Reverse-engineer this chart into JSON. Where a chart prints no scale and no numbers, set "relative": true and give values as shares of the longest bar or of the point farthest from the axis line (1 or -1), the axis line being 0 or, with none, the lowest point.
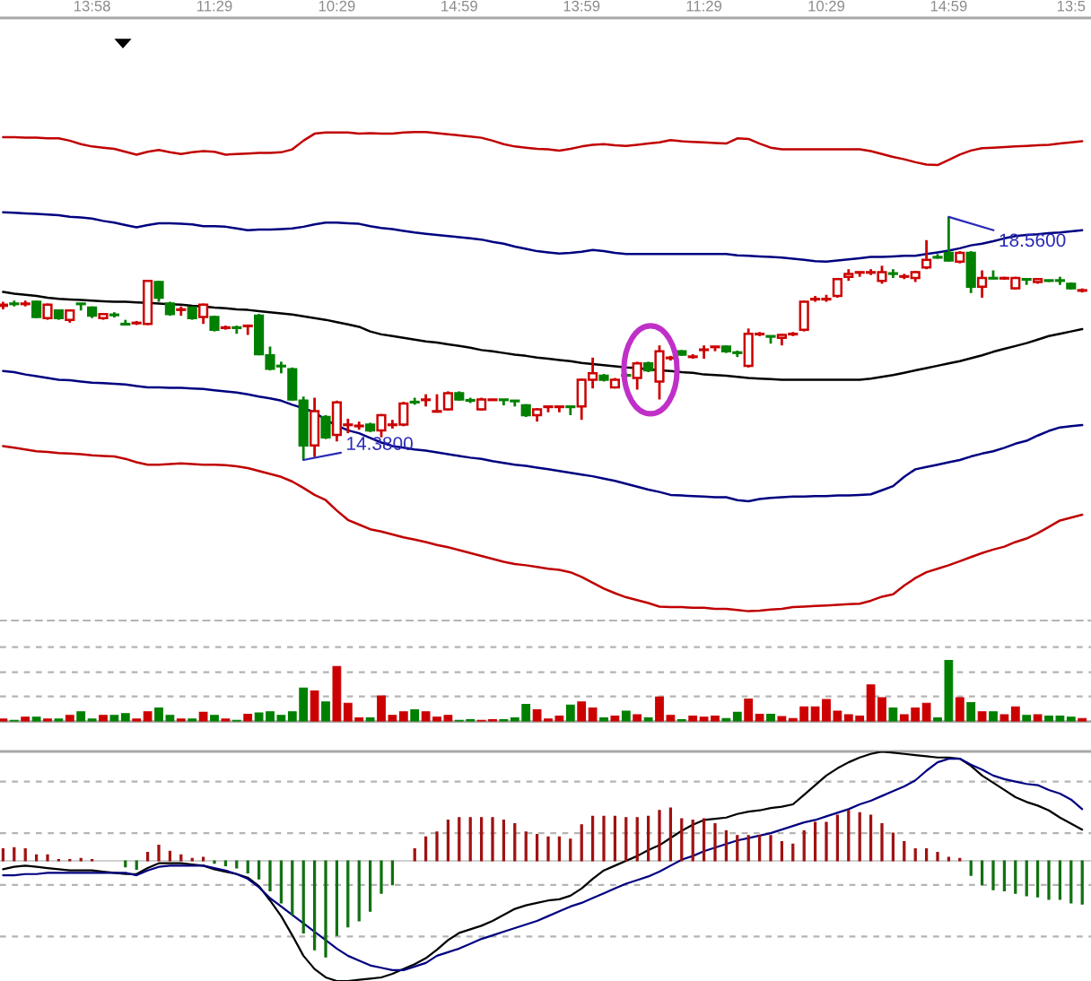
{
  "chart_data": [
    {
      "type": "candlestick",
      "categories": [
        null,
        null,
        null,
        null,
        null,
        null,
        null,
        null,
        "13:58",
        null,
        null,
        null,
        null,
        null,
        null,
        null,
        null,
        null,
        null,
        "11:29",
        null,
        null,
        null,
        null,
        null,
        null,
        null,
        null,
        null,
        null,
        "10:29",
        null,
        null,
        null,
        null,
        null,
        null,
        null,
        null,
        null,
        null,
        "14:59",
        null,
        null,
        null,
        null,
        null,
        null,
        null,
        null,
        null,
        null,
        "13:59",
        null,
        null,
        null,
        null,
        null,
        null,
        null,
        null,
        null,
        null,
        "11:29",
        null,
        null,
        null,
        null,
        null,
        null,
        null,
        null,
        null,
        null,
        "10:29",
        null,
        null,
        null,
        null,
        null,
        null,
        null,
        null,
        null,
        null,
        "14:59",
        null,
        null,
        null,
        null,
        null,
        null,
        null,
        null,
        null,
        null,
        "13:5",
        null
      ],
      "ohlc": [
        [
          17.03,
          17.1,
          16.97,
          17.05
        ],
        [
          17.07,
          17.12,
          17.02,
          17.06
        ],
        [
          17.06,
          17.12,
          17.02,
          17.07
        ],
        [
          17.1,
          17.12,
          16.82,
          16.84
        ],
        [
          16.82,
          17.07,
          16.79,
          17.05
        ],
        [
          16.95,
          16.97,
          16.79,
          16.82
        ],
        [
          16.79,
          16.97,
          16.74,
          16.95
        ],
        [
          17.07,
          17.07,
          16.95,
          17.06
        ],
        [
          17.0,
          17.02,
          16.82,
          16.86
        ],
        [
          16.82,
          16.9,
          16.79,
          16.89
        ],
        [
          16.88,
          16.92,
          16.83,
          16.87
        ],
        [
          16.72,
          16.79,
          16.7,
          16.71
        ],
        [
          16.73,
          16.77,
          16.7,
          16.74
        ],
        [
          16.72,
          17.47,
          16.7,
          17.46
        ],
        [
          17.44,
          17.46,
          17.1,
          17.17
        ],
        [
          17.07,
          17.1,
          16.86,
          16.89
        ],
        [
          16.96,
          17.02,
          16.86,
          16.97
        ],
        [
          17.0,
          17.02,
          16.79,
          16.82
        ],
        [
          16.84,
          17.07,
          16.72,
          17.05
        ],
        [
          16.84,
          16.86,
          16.59,
          16.62
        ],
        [
          16.65,
          16.69,
          16.62,
          16.66
        ],
        [
          16.66,
          16.69,
          16.55,
          16.65
        ],
        [
          16.68,
          16.7,
          16.53,
          16.69
        ],
        [
          16.86,
          16.89,
          16.18,
          16.2
        ],
        [
          16.18,
          16.33,
          15.92,
          15.95
        ],
        [
          16.0,
          16.07,
          15.87,
          15.99
        ],
        [
          15.94,
          15.97,
          15.4,
          15.42
        ],
        [
          15.4,
          15.47,
          14.38,
          14.63
        ],
        [
          14.63,
          15.45,
          14.43,
          15.22
        ],
        [
          15.12,
          15.15,
          14.74,
          14.77
        ],
        [
          14.81,
          15.4,
          14.7,
          15.37
        ],
        [
          14.98,
          15.09,
          14.84,
          14.99
        ],
        [
          14.96,
          15.04,
          14.9,
          14.97
        ],
        [
          14.99,
          15.02,
          14.86,
          14.89
        ],
        [
          14.89,
          15.17,
          14.77,
          15.15
        ],
        [
          14.98,
          15.07,
          14.92,
          14.99
        ],
        [
          14.99,
          15.38,
          14.96,
          15.35
        ],
        [
          15.38,
          15.45,
          15.33,
          15.37
        ],
        [
          15.41,
          15.51,
          15.3,
          15.42
        ],
        [
          15.21,
          15.51,
          15.2,
          15.22
        ],
        [
          15.25,
          15.56,
          15.23,
          15.53
        ],
        [
          15.53,
          15.56,
          15.4,
          15.42
        ],
        [
          15.41,
          15.45,
          15.36,
          15.4
        ],
        [
          15.25,
          15.45,
          15.23,
          15.42
        ],
        [
          15.41,
          15.43,
          15.4,
          15.42
        ],
        [
          15.42,
          15.42,
          15.32,
          15.41
        ],
        [
          15.4,
          15.4,
          15.3,
          15.39
        ],
        [
          15.32,
          15.34,
          15.12,
          15.15
        ],
        [
          15.15,
          15.27,
          15.04,
          15.25
        ],
        [
          15.29,
          15.3,
          15.2,
          15.3
        ],
        [
          15.29,
          15.3,
          15.2,
          15.3
        ],
        [
          15.3,
          15.3,
          15.15,
          15.29
        ],
        [
          15.3,
          15.78,
          15.07,
          15.76
        ],
        [
          15.76,
          16.14,
          15.61,
          15.87
        ],
        [
          15.83,
          15.86,
          15.73,
          15.76
        ],
        [
          15.63,
          15.79,
          15.61,
          15.76
        ],
        [
          15.84,
          15.87,
          15.8,
          15.83
        ],
        [
          15.79,
          16.07,
          15.59,
          16.04
        ],
        [
          16.04,
          16.07,
          15.89,
          15.92
        ],
        [
          15.73,
          16.35,
          15.42,
          16.25
        ],
        [
          16.13,
          16.17,
          16.09,
          16.14
        ],
        [
          16.25,
          16.27,
          16.17,
          16.19
        ],
        [
          16.15,
          16.2,
          16.12,
          16.16
        ],
        [
          16.27,
          16.35,
          16.12,
          16.28
        ],
        [
          16.32,
          16.34,
          16.25,
          16.33
        ],
        [
          16.33,
          16.35,
          16.22,
          16.25
        ],
        [
          16.23,
          16.26,
          16.15,
          16.22
        ],
        [
          16.0,
          16.64,
          15.97,
          16.55
        ],
        [
          16.54,
          16.58,
          16.51,
          16.55
        ],
        [
          16.51,
          16.51,
          16.38,
          16.5
        ],
        [
          16.48,
          16.55,
          16.35,
          16.53
        ],
        [
          16.54,
          16.58,
          16.51,
          16.55
        ],
        [
          16.62,
          17.12,
          16.59,
          17.1
        ],
        [
          17.14,
          17.2,
          17.1,
          17.15
        ],
        [
          17.14,
          17.22,
          17.1,
          17.15
        ],
        [
          17.2,
          17.51,
          17.17,
          17.49
        ],
        [
          17.53,
          17.66,
          17.46,
          17.58
        ],
        [
          17.6,
          17.62,
          17.53,
          17.61
        ],
        [
          17.6,
          17.66,
          17.56,
          17.61
        ],
        [
          17.46,
          17.72,
          17.41,
          17.61
        ],
        [
          17.59,
          17.66,
          17.51,
          17.58
        ],
        [
          17.53,
          17.58,
          17.49,
          17.54
        ],
        [
          17.51,
          17.63,
          17.44,
          17.61
        ],
        [
          17.69,
          18.16,
          17.66,
          17.82
        ],
        [
          17.87,
          17.92,
          17.84,
          17.86
        ],
        [
          17.94,
          18.56,
          17.79,
          17.81
        ],
        [
          17.79,
          17.97,
          17.76,
          17.94
        ],
        [
          17.94,
          17.97,
          17.25,
          17.36
        ],
        [
          17.36,
          17.64,
          17.17,
          17.51
        ],
        [
          17.51,
          17.64,
          17.49,
          17.5
        ],
        [
          17.5,
          17.53,
          17.48,
          17.51
        ],
        [
          17.33,
          17.53,
          17.31,
          17.51
        ],
        [
          17.49,
          17.49,
          17.39,
          17.48
        ],
        [
          17.44,
          17.51,
          17.41,
          17.49
        ],
        [
          17.47,
          17.48,
          17.44,
          17.46
        ],
        [
          17.47,
          17.53,
          17.39,
          17.46
        ],
        [
          17.41,
          17.43,
          17.31,
          17.33
        ],
        [
          17.29,
          17.33,
          17.26,
          17.3
        ]
      ],
      "value_labels": [
        null,
        null,
        null,
        null,
        null,
        null,
        null,
        null,
        null,
        null,
        null,
        null,
        null,
        null,
        null,
        null,
        null,
        null,
        null,
        null,
        null,
        null,
        null,
        null,
        null,
        null,
        null,
        "14.3800",
        null,
        null,
        null,
        null,
        null,
        null,
        null,
        null,
        null,
        null,
        null,
        null,
        null,
        null,
        null,
        null,
        null,
        null,
        null,
        null,
        null,
        null,
        null,
        null,
        null,
        null,
        null,
        null,
        null,
        null,
        null,
        null,
        null,
        null,
        null,
        null,
        null,
        null,
        null,
        null,
        null,
        null,
        null,
        null,
        null,
        null,
        null,
        null,
        null,
        null,
        null,
        null,
        null,
        null,
        null,
        null,
        null,
        "18.5600",
        null,
        null,
        null,
        null,
        null,
        null,
        null,
        null,
        null,
        null,
        null,
        null
      ],
      "colors": [
        "#cc0000",
        "#008000",
        "#cc0000",
        "#008000",
        "#cc0000",
        "#008000",
        "#cc0000",
        "#008000",
        "#008000",
        "#cc0000",
        "#008000",
        "#008000",
        "#cc0000",
        "#cc0000",
        "#008000",
        "#008000",
        "#cc0000",
        "#008000",
        "#cc0000",
        "#008000",
        "#cc0000",
        "#008000",
        "#cc0000",
        "#008000",
        "#008000",
        "#008000",
        "#008000",
        "#008000",
        "#cc0000",
        "#008000",
        "#cc0000",
        "#cc0000",
        "#cc0000",
        "#008000",
        "#cc0000",
        "#cc0000",
        "#cc0000",
        "#008000",
        "#cc0000",
        "#cc0000",
        "#cc0000",
        "#008000",
        "#008000",
        "#cc0000",
        "#cc0000",
        "#008000",
        "#008000",
        "#008000",
        "#cc0000",
        "#cc0000",
        "#cc0000",
        "#008000",
        "#cc0000",
        "#cc0000",
        "#008000",
        "#cc0000",
        "#008000",
        "#cc0000",
        "#008000",
        "#cc0000",
        "#cc0000",
        "#008000",
        "#cc0000",
        "#cc0000",
        "#cc0000",
        "#008000",
        "#008000",
        "#cc0000",
        "#cc0000",
        "#008000",
        "#cc0000",
        "#cc0000",
        "#cc0000",
        "#cc0000",
        "#cc0000",
        "#cc0000",
        "#cc0000",
        "#cc0000",
        "#cc0000",
        "#cc0000",
        "#008000",
        "#cc0000",
        "#cc0000",
        "#cc0000",
        "#008000",
        "#008000",
        "#cc0000",
        "#008000",
        "#cc0000",
        "#008000",
        "#cc0000",
        "#cc0000",
        "#008000",
        "#cc0000",
        "#008000",
        "#008000",
        "#008000",
        "#cc0000"
      ],
      "series": [
        {
          "type": "line",
          "color": "#c00000",
          "values": [
            19.93,
            19.93,
            19.92,
            19.92,
            19.91,
            19.91,
            19.87,
            19.81,
            19.77,
            19.75,
            19.73,
            19.68,
            19.63,
            19.68,
            19.71,
            19.67,
            19.64,
            19.67,
            19.69,
            19.68,
            19.63,
            19.64,
            19.65,
            19.66,
            19.66,
            19.67,
            19.72,
            19.87,
            19.99,
            20.01,
            20.01,
            20.01,
            19.99,
            20.0,
            19.99,
            19.99,
            20.01,
            20.02,
            20.02,
            20.0,
            19.98,
            19.96,
            19.94,
            19.92,
            19.87,
            19.81,
            19.77,
            19.75,
            19.73,
            19.72,
            19.7,
            19.73,
            19.77,
            19.8,
            19.81,
            19.79,
            19.78,
            19.8,
            19.82,
            19.84,
            19.88,
            19.86,
            19.85,
            19.84,
            19.83,
            19.82,
            19.91,
            19.9,
            19.82,
            19.75,
            19.72,
            19.72,
            19.72,
            19.72,
            19.72,
            19.72,
            19.72,
            19.72,
            19.69,
            19.64,
            19.59,
            19.55,
            19.5,
            19.46,
            19.45,
            19.54,
            19.63,
            19.7,
            19.74,
            19.75,
            19.76,
            19.77,
            19.78,
            19.79,
            19.8,
            19.82,
            19.84,
            19.86
          ]
        },
        {
          "type": "line",
          "color": "#000080",
          "values": [
            18.64,
            18.63,
            18.62,
            18.61,
            18.6,
            18.59,
            18.56,
            18.55,
            18.53,
            18.49,
            18.46,
            18.42,
            18.38,
            18.42,
            18.45,
            18.45,
            18.44,
            18.43,
            18.4,
            18.4,
            18.39,
            18.36,
            18.33,
            18.34,
            18.34,
            18.35,
            18.36,
            18.39,
            18.43,
            18.46,
            18.46,
            18.45,
            18.44,
            18.4,
            18.37,
            18.35,
            18.32,
            18.29,
            18.27,
            18.25,
            18.23,
            18.21,
            18.19,
            18.17,
            18.13,
            18.1,
            18.05,
            18.01,
            17.97,
            17.95,
            17.93,
            17.94,
            17.96,
            17.99,
            17.97,
            17.94,
            17.92,
            17.92,
            17.92,
            17.92,
            17.92,
            17.92,
            17.92,
            17.92,
            17.92,
            17.92,
            17.9,
            17.89,
            17.88,
            17.87,
            17.86,
            17.84,
            17.82,
            17.8,
            17.79,
            17.81,
            17.83,
            17.85,
            17.87,
            17.87,
            17.88,
            17.89,
            17.89,
            17.92,
            17.95,
            17.98,
            18.02,
            18.07,
            18.1,
            18.14,
            18.19,
            18.23,
            18.25,
            18.26,
            18.28,
            18.29,
            18.31,
            18.33
          ]
        },
        {
          "type": "line",
          "color": "#000000",
          "values": [
            17.27,
            17.24,
            17.22,
            17.2,
            17.17,
            17.15,
            17.14,
            17.13,
            17.12,
            17.11,
            17.1,
            17.1,
            17.09,
            17.08,
            17.07,
            17.06,
            17.05,
            17.03,
            17.02,
            17.0,
            16.99,
            16.97,
            16.96,
            16.94,
            16.92,
            16.9,
            16.88,
            16.85,
            16.82,
            16.79,
            16.75,
            16.71,
            16.67,
            16.59,
            16.54,
            16.51,
            16.48,
            16.45,
            16.42,
            16.4,
            16.37,
            16.34,
            16.31,
            16.27,
            16.25,
            16.22,
            16.19,
            16.17,
            16.14,
            16.12,
            16.1,
            16.08,
            16.05,
            16.03,
            16.01,
            15.99,
            15.97,
            15.96,
            15.94,
            15.92,
            15.91,
            15.89,
            15.88,
            15.85,
            15.84,
            15.83,
            15.81,
            15.79,
            15.78,
            15.77,
            15.76,
            15.76,
            15.76,
            15.76,
            15.76,
            15.76,
            15.76,
            15.76,
            15.78,
            15.81,
            15.84,
            15.88,
            15.92,
            15.96,
            16.0,
            16.04,
            16.08,
            16.13,
            16.18,
            16.24,
            16.29,
            16.34,
            16.39,
            16.45,
            16.51,
            16.55,
            16.59,
            16.63
          ]
        },
        {
          "type": "line",
          "color": "#000080",
          "values": [
            15.91,
            15.89,
            15.85,
            15.82,
            15.79,
            15.76,
            15.75,
            15.73,
            15.71,
            15.7,
            15.69,
            15.68,
            15.65,
            15.63,
            15.63,
            15.62,
            15.62,
            15.61,
            15.6,
            15.58,
            15.56,
            15.54,
            15.51,
            15.47,
            15.44,
            15.4,
            15.33,
            15.27,
            15.2,
            15.07,
            14.97,
            14.89,
            14.84,
            14.76,
            14.68,
            14.62,
            14.59,
            14.56,
            14.54,
            14.51,
            14.48,
            14.45,
            14.42,
            14.4,
            14.36,
            14.33,
            14.3,
            14.28,
            14.25,
            14.22,
            14.19,
            14.16,
            14.13,
            14.1,
            14.06,
            14.02,
            13.97,
            13.92,
            13.87,
            13.83,
            13.78,
            13.77,
            13.76,
            13.75,
            13.74,
            13.74,
            13.69,
            13.67,
            13.71,
            13.73,
            13.74,
            13.75,
            13.75,
            13.76,
            13.76,
            13.77,
            13.77,
            13.78,
            13.79,
            13.86,
            13.93,
            14.09,
            14.22,
            14.26,
            14.3,
            14.34,
            14.38,
            14.44,
            14.49,
            14.53,
            14.59,
            14.66,
            14.71,
            14.8,
            14.88,
            14.94,
            14.96,
            14.98
          ]
        },
        {
          "type": "line",
          "color": "#c00000",
          "values": [
            14.62,
            14.59,
            14.56,
            14.53,
            14.52,
            14.5,
            14.49,
            14.48,
            14.46,
            14.45,
            14.44,
            14.4,
            14.34,
            14.3,
            14.3,
            14.31,
            14.32,
            14.31,
            14.3,
            14.3,
            14.29,
            14.27,
            14.24,
            14.19,
            14.14,
            14.09,
            14.01,
            13.9,
            13.78,
            13.69,
            13.51,
            13.35,
            13.27,
            13.19,
            13.15,
            13.1,
            13.05,
            13.01,
            12.97,
            12.92,
            12.88,
            12.83,
            12.78,
            12.73,
            12.68,
            12.63,
            12.59,
            12.57,
            12.54,
            12.51,
            12.49,
            12.45,
            12.37,
            12.27,
            12.17,
            12.09,
            12.02,
            11.97,
            11.92,
            11.86,
            11.85,
            11.85,
            11.84,
            11.84,
            11.82,
            11.82,
            11.8,
            11.78,
            11.79,
            11.81,
            11.82,
            11.85,
            11.86,
            11.87,
            11.88,
            11.89,
            11.9,
            11.91,
            11.96,
            12.03,
            12.07,
            12.22,
            12.35,
            12.45,
            12.51,
            12.57,
            12.64,
            12.71,
            12.78,
            12.84,
            12.89,
            12.97,
            13.03,
            13.12,
            13.23,
            13.34,
            13.39,
            13.44
          ]
        }
      ],
      "ylim": [
        11.62,
        21.98
      ],
      "tick_labels": "x"
    },
    {
      "type": "bar",
      "relative": true,
      "tick_labels": false,
      "ref_lines": [
        {
          "axis": "y",
          "value": 0.41,
          "color": "#b4b4b4",
          "line_style": "dashed"
        },
        {
          "axis": "y",
          "value": 0.81,
          "color": "#b4b4b4",
          "line_style": "dashed"
        },
        {
          "axis": "y",
          "value": 1.22,
          "color": "#b4b4b4",
          "line_style": "dashed"
        }
      ],
      "categories": [
        null,
        null,
        null,
        null,
        null,
        null,
        null,
        null,
        null,
        null,
        null,
        null,
        null,
        null,
        null,
        null,
        null,
        null,
        null,
        null,
        null,
        null,
        null,
        null,
        null,
        null,
        null,
        null,
        null,
        null,
        null,
        null,
        null,
        null,
        null,
        null,
        null,
        null,
        null,
        null,
        null,
        null,
        null,
        null,
        null,
        null,
        null,
        null,
        null,
        null,
        null,
        null,
        null,
        null,
        null,
        null,
        null,
        null,
        null,
        null,
        null,
        null,
        null,
        null,
        null,
        null,
        null,
        null,
        null,
        null,
        null,
        null,
        null,
        null,
        null,
        null,
        null,
        null,
        null,
        null,
        null,
        null,
        null,
        null,
        null,
        null,
        null,
        null,
        null,
        null,
        null,
        null,
        null,
        null,
        null,
        null,
        null,
        null
      ],
      "values": [
        0.04,
        0.02,
        0.07,
        0.07,
        0.04,
        0.04,
        0.1,
        0.16,
        0.04,
        0.1,
        0.1,
        0.13,
        0.04,
        0.16,
        0.22,
        0.1,
        0.04,
        0.04,
        0.15,
        0.1,
        0.04,
        0.02,
        0.12,
        0.14,
        0.16,
        0.1,
        0.16,
        0.55,
        0.5,
        0.32,
        0.9,
        0.3,
        0.06,
        0.06,
        0.42,
        0.1,
        0.16,
        0.19,
        0.16,
        0.07,
        0.1,
        0.02,
        0.03,
        0.02,
        0.03,
        0.03,
        0.06,
        0.28,
        0.19,
        0.04,
        0.09,
        0.27,
        0.32,
        0.22,
        0.06,
        0.09,
        0.17,
        0.11,
        0.06,
        0.4,
        0.1,
        0.03,
        0.09,
        0.07,
        0.09,
        0.05,
        0.15,
        0.37,
        0.12,
        0.12,
        0.08,
        0.05,
        0.24,
        0.24,
        0.36,
        0.17,
        0.11,
        0.09,
        0.6,
        0.39,
        0.22,
        0.11,
        0.22,
        0.3,
        0.06,
        1,
        0.39,
        0.31,
        0.16,
        0.16,
        0.11,
        0.24,
        0.1,
        0.11,
        0.09,
        0.09,
        0.07,
        0.05
      ],
      "colors": [
        "#cc0000",
        "#008000",
        "#cc0000",
        "#008000",
        "#cc0000",
        "#008000",
        "#cc0000",
        "#008000",
        "#008000",
        "#cc0000",
        "#008000",
        "#008000",
        "#cc0000",
        "#cc0000",
        "#008000",
        "#008000",
        "#cc0000",
        "#008000",
        "#cc0000",
        "#008000",
        "#cc0000",
        "#008000",
        "#cc0000",
        "#008000",
        "#008000",
        "#008000",
        "#008000",
        "#008000",
        "#cc0000",
        "#008000",
        "#cc0000",
        "#cc0000",
        "#cc0000",
        "#008000",
        "#cc0000",
        "#cc0000",
        "#cc0000",
        "#008000",
        "#cc0000",
        "#cc0000",
        "#cc0000",
        "#008000",
        "#008000",
        "#cc0000",
        "#cc0000",
        "#008000",
        "#008000",
        "#008000",
        "#cc0000",
        "#cc0000",
        "#cc0000",
        "#008000",
        "#cc0000",
        "#cc0000",
        "#008000",
        "#cc0000",
        "#008000",
        "#cc0000",
        "#008000",
        "#cc0000",
        "#cc0000",
        "#008000",
        "#cc0000",
        "#cc0000",
        "#cc0000",
        "#008000",
        "#008000",
        "#cc0000",
        "#cc0000",
        "#008000",
        "#cc0000",
        "#cc0000",
        "#cc0000",
        "#cc0000",
        "#cc0000",
        "#cc0000",
        "#cc0000",
        "#cc0000",
        "#cc0000",
        "#cc0000",
        "#008000",
        "#cc0000",
        "#cc0000",
        "#cc0000",
        "#008000",
        "#008000",
        "#cc0000",
        "#008000",
        "#cc0000",
        "#008000",
        "#cc0000",
        "#cc0000",
        "#008000",
        "#cc0000",
        "#008000",
        "#008000",
        "#008000",
        "#cc0000"
      ]
    },
    {
      "type": "bar",
      "relative": true,
      "tick_labels": false,
      "ref_lines": [
        {
          "axis": "y",
          "value": 0.66,
          "color": "#b4b4b4",
          "line_style": "dashed"
        },
        {
          "axis": "y",
          "value": 0.23,
          "color": "#b4b4b4",
          "line_style": "dashed"
        },
        {
          "axis": "y",
          "value": -0.2,
          "color": "#b4b4b4",
          "line_style": "dashed"
        },
        {
          "axis": "y",
          "value": -0.63,
          "color": "#b4b4b4",
          "line_style": "dashed"
        }
      ],
      "categories": [
        null,
        null,
        null,
        null,
        null,
        null,
        null,
        null,
        null,
        null,
        null,
        null,
        null,
        null,
        null,
        null,
        null,
        null,
        null,
        null,
        null,
        null,
        null,
        null,
        null,
        null,
        null,
        null,
        null,
        null,
        null,
        null,
        null,
        null,
        null,
        null,
        null,
        null,
        null,
        null,
        null,
        null,
        null,
        null,
        null,
        null,
        null,
        null,
        null,
        null,
        null,
        null,
        null,
        null,
        null,
        null,
        null,
        null,
        null,
        null,
        null,
        null,
        null,
        null,
        null,
        null,
        null,
        null,
        null,
        null,
        null,
        null,
        null,
        null,
        null,
        null,
        null,
        null,
        null,
        null,
        null,
        null,
        null,
        null,
        null,
        null,
        null,
        null,
        null,
        null,
        null,
        null,
        null,
        null,
        null,
        null,
        null,
        null
      ],
      "series": [
        {
          "type": "bar",
          "values": [
            0.1,
            0.11,
            0.1,
            0.05,
            0.05,
            0.01,
            0.01,
            0.02,
            0.01,
            null,
            null,
            -0.05,
            -0.07,
            0.07,
            0.13,
            0.08,
            0.05,
            0.02,
            0.03,
            -0.02,
            -0.04,
            -0.06,
            -0.1,
            -0.15,
            -0.25,
            -0.35,
            -0.45,
            -0.6,
            -0.74,
            -0.8,
            -0.62,
            -0.55,
            -0.5,
            -0.42,
            -0.27,
            -0.2,
            null,
            0.1,
            0.2,
            0.24,
            0.34,
            0.36,
            0.36,
            0.36,
            0.36,
            0.34,
            0.31,
            0.24,
            0.22,
            0.2,
            0.2,
            0.18,
            0.3,
            0.37,
            0.37,
            0.37,
            0.36,
            0.36,
            0.37,
            0.42,
            0.44,
            0.35,
            0.34,
            0.35,
            0.31,
            0.25,
            0.21,
            0.21,
            0.21,
            0.21,
            0.16,
            0.14,
            0.25,
            0.32,
            0.32,
            0.38,
            0.42,
            0.4,
            0.38,
            0.31,
            0.23,
            0.16,
            0.1,
            0.1,
            0.07,
            0.03,
            0.02,
            -0.12,
            -0.2,
            -0.24,
            -0.25,
            -0.27,
            -0.29,
            -0.3,
            -0.32,
            -0.32,
            -0.35,
            -0.36
          ],
          "colors": [
            "#a01010",
            "#a01010",
            "#a01010",
            "#a01010",
            "#a01010",
            "#a01010",
            "#a01010",
            "#a01010",
            "#a01010",
            "#a01010",
            "#a01010",
            "#107010",
            "#107010",
            "#a01010",
            "#a01010",
            "#a01010",
            "#a01010",
            "#a01010",
            "#a01010",
            "#107010",
            "#107010",
            "#107010",
            "#107010",
            "#107010",
            "#107010",
            "#107010",
            "#107010",
            "#107010",
            "#107010",
            "#107010",
            "#107010",
            "#107010",
            "#107010",
            "#107010",
            "#107010",
            "#107010",
            "#a01010",
            "#a01010",
            "#a01010",
            "#a01010",
            "#a01010",
            "#a01010",
            "#a01010",
            "#a01010",
            "#a01010",
            "#a01010",
            "#a01010",
            "#a01010",
            "#a01010",
            "#a01010",
            "#a01010",
            "#a01010",
            "#a01010",
            "#a01010",
            "#a01010",
            "#a01010",
            "#a01010",
            "#a01010",
            "#a01010",
            "#a01010",
            "#a01010",
            "#a01010",
            "#a01010",
            "#a01010",
            "#a01010",
            "#a01010",
            "#a01010",
            "#a01010",
            "#a01010",
            "#a01010",
            "#a01010",
            "#a01010",
            "#a01010",
            "#a01010",
            "#a01010",
            "#a01010",
            "#a01010",
            "#a01010",
            "#a01010",
            "#a01010",
            "#a01010",
            "#a01010",
            "#a01010",
            "#a01010",
            "#a01010",
            "#a01010",
            "#a01010",
            "#107010",
            "#107010",
            "#107010",
            "#107010",
            "#107010",
            "#107010",
            "#107010",
            "#107010",
            "#107010",
            "#107010",
            "#107010"
          ]
        },
        {
          "type": "line",
          "color": "#000000",
          "values": [
            -0.07,
            -0.05,
            -0.04,
            -0.05,
            -0.06,
            -0.07,
            -0.08,
            -0.08,
            -0.08,
            -0.09,
            -0.1,
            -0.11,
            -0.11,
            -0.06,
            -0.02,
            -0.02,
            -0.02,
            -0.03,
            -0.04,
            -0.07,
            -0.09,
            -0.11,
            -0.14,
            -0.21,
            -0.33,
            -0.46,
            -0.62,
            -0.79,
            -0.9,
            -0.97,
            -1,
            -1,
            -0.99,
            -0.98,
            -0.97,
            -0.94,
            -0.9,
            -0.86,
            -0.81,
            -0.74,
            -0.66,
            -0.6,
            -0.57,
            -0.54,
            -0.5,
            -0.45,
            -0.4,
            -0.37,
            -0.35,
            -0.33,
            -0.32,
            -0.29,
            -0.23,
            -0.15,
            -0.08,
            -0.04,
            0,
            0.04,
            0.09,
            0.13,
            0.19,
            0.25,
            0.3,
            0.34,
            0.35,
            0.36,
            0.39,
            0.41,
            0.42,
            0.44,
            0.45,
            0.47,
            0.55,
            0.63,
            0.71,
            0.77,
            0.82,
            0.86,
            0.89,
            0.91,
            0.9,
            0.89,
            0.88,
            0.87,
            0.86,
            0.86,
            0.85,
            0.79,
            0.71,
            0.65,
            0.59,
            0.53,
            0.49,
            0.46,
            0.42,
            0.36,
            0.31,
            0.26
          ]
        },
        {
          "type": "line",
          "color": "#000080",
          "values": [
            -0.12,
            -0.12,
            -0.11,
            -0.11,
            -0.1,
            -0.1,
            -0.1,
            -0.1,
            -0.1,
            -0.1,
            -0.1,
            -0.1,
            -0.12,
            -0.08,
            -0.05,
            -0.04,
            -0.04,
            -0.04,
            -0.04,
            -0.06,
            -0.08,
            -0.11,
            -0.15,
            -0.22,
            -0.31,
            -0.38,
            -0.45,
            -0.52,
            -0.59,
            -0.66,
            -0.73,
            -0.79,
            -0.83,
            -0.87,
            -0.89,
            -0.91,
            -0.91,
            -0.88,
            -0.85,
            -0.79,
            -0.76,
            -0.73,
            -0.69,
            -0.65,
            -0.62,
            -0.59,
            -0.56,
            -0.53,
            -0.5,
            -0.46,
            -0.42,
            -0.38,
            -0.35,
            -0.31,
            -0.27,
            -0.23,
            -0.19,
            -0.16,
            -0.13,
            -0.09,
            -0.04,
            0.01,
            0.04,
            0.08,
            0.11,
            0.14,
            0.17,
            0.19,
            0.21,
            0.23,
            0.26,
            0.29,
            0.32,
            0.34,
            0.37,
            0.4,
            0.43,
            0.47,
            0.5,
            0.54,
            0.58,
            0.62,
            0.67,
            0.75,
            0.82,
            0.85,
            0.85,
            0.8,
            0.76,
            0.71,
            0.68,
            0.66,
            0.64,
            0.63,
            0.59,
            0.56,
            0.51,
            0.43
          ]
        }
      ]
    }
  ]
}
